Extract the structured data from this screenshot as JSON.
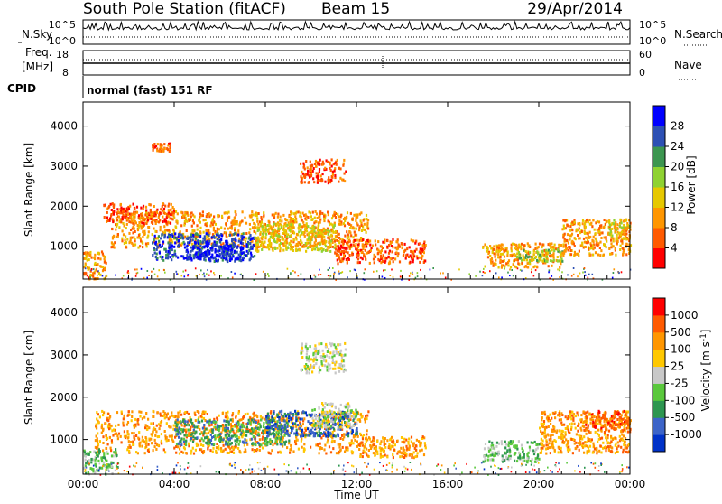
{
  "header": {
    "station": "South Pole Station (fitACF)",
    "beam": "Beam 15",
    "date": "29/Apr/2014"
  },
  "aux_panels": {
    "nsky_label": "N.Sky",
    "nsky_ticks": [
      "10^5",
      "10^0"
    ],
    "nsearch_label": "N.Search",
    "nsearch_ticks": [
      "10^5",
      "10^0"
    ],
    "freq_label_top": "Freq.",
    "freq_label_bottom": "[MHz]",
    "freq_ticks": [
      "18",
      "8"
    ],
    "nave_label": "Nave",
    "nave_ticks": [
      "60",
      "0"
    ],
    "cpid_label": "CPID",
    "cpid_text": "normal (fast) 151 RF"
  },
  "chart_data": [
    {
      "type": "heatmap",
      "name": "power",
      "ylabel": "Slant Range [km]",
      "yticks": [
        "4000",
        "3000",
        "2000",
        "1000"
      ],
      "yticks_values": [
        4000,
        3000,
        2000,
        1000
      ],
      "ylim": [
        180,
        4600
      ],
      "xlim_hours": [
        0,
        24
      ],
      "colorbar": {
        "label": "Power [dB]",
        "ticks": [
          "28",
          "24",
          "20",
          "16",
          "12",
          "8",
          "4"
        ],
        "colors": [
          "#ff0000",
          "#ff5a00",
          "#ff9600",
          "#e6c800",
          "#8fd232",
          "#3c9650",
          "#2d50b4",
          "#0000ff"
        ]
      },
      "regions": [
        {
          "t0": 1.2,
          "t1": 12.5,
          "r0": 1000,
          "r1": 1900,
          "level": 2
        },
        {
          "t0": 3.0,
          "t1": 7.5,
          "r0": 650,
          "r1": 1350,
          "level": 6
        },
        {
          "t0": 4.5,
          "t1": 7.0,
          "r0": 700,
          "r1": 1200,
          "level": 7
        },
        {
          "t0": 7.5,
          "t1": 11.0,
          "r0": 900,
          "r1": 1600,
          "level": 3
        },
        {
          "t0": 11.0,
          "t1": 15.0,
          "r0": 600,
          "r1": 1200,
          "level": 1
        },
        {
          "t0": 0.0,
          "t1": 1.0,
          "r0": 200,
          "r1": 900,
          "level": 2
        },
        {
          "t0": 0.8,
          "t1": 4.0,
          "r0": 1600,
          "r1": 2100,
          "level": 1
        },
        {
          "t0": 9.5,
          "t1": 11.5,
          "r0": 2600,
          "r1": 3200,
          "level": 1
        },
        {
          "t0": 3.0,
          "t1": 3.8,
          "r0": 3400,
          "r1": 3600,
          "level": 1
        },
        {
          "t0": 17.5,
          "t1": 21.0,
          "r0": 500,
          "r1": 1100,
          "level": 2
        },
        {
          "t0": 19.0,
          "t1": 21.0,
          "r0": 650,
          "r1": 950,
          "level": 4
        },
        {
          "t0": 21.0,
          "t1": 24.0,
          "r0": 800,
          "r1": 1700,
          "level": 2
        },
        {
          "t0": 23.0,
          "t1": 24.0,
          "r0": 1200,
          "r1": 1700,
          "level": 3
        }
      ]
    },
    {
      "type": "heatmap",
      "name": "velocity",
      "ylabel": "Slant Range [km]",
      "yticks": [
        "4000",
        "3000",
        "2000",
        "1000"
      ],
      "yticks_values": [
        4000,
        3000,
        2000,
        1000
      ],
      "ylim": [
        180,
        4600
      ],
      "xlim_hours": [
        0,
        24
      ],
      "xticks": [
        "00:00",
        "04:00",
        "08:00",
        "12:00",
        "16:00",
        "20:00",
        "00:00"
      ],
      "xticks_hours": [
        0,
        4,
        8,
        12,
        16,
        20,
        24
      ],
      "xlabel": "Time UT",
      "colorbar": {
        "label": "Velocity [m s",
        "label_sup": "-1",
        "label_end": "]",
        "ticks": [
          "1000",
          "500",
          "100",
          "25",
          "-25",
          "-100",
          "-500",
          "-1000"
        ],
        "colors": [
          "#0032c8",
          "#3c64c8",
          "#2d9650",
          "#5ac83c",
          "#c8c8c8",
          "#ffc800",
          "#ff9600",
          "#ff5a00",
          "#ff0000"
        ]
      },
      "regions": [
        {
          "t0": 0.5,
          "t1": 12.5,
          "r0": 700,
          "r1": 1700,
          "level": 6
        },
        {
          "t0": 4.0,
          "t1": 9.0,
          "r0": 900,
          "r1": 1500,
          "level": 2
        },
        {
          "t0": 8.0,
          "t1": 12.0,
          "r0": 1100,
          "r1": 1700,
          "level": 1
        },
        {
          "t0": 10.0,
          "t1": 12.0,
          "r0": 1300,
          "r1": 1900,
          "level": 4
        },
        {
          "t0": 0.0,
          "t1": 1.5,
          "r0": 200,
          "r1": 800,
          "level": 3
        },
        {
          "t0": 12.0,
          "t1": 15.0,
          "r0": 600,
          "r1": 1100,
          "level": 6
        },
        {
          "t0": 9.5,
          "t1": 11.5,
          "r0": 2600,
          "r1": 3300,
          "level": 4
        },
        {
          "t0": 17.5,
          "t1": 20.0,
          "r0": 500,
          "r1": 1000,
          "level": 3
        },
        {
          "t0": 20.0,
          "t1": 24.0,
          "r0": 700,
          "r1": 1700,
          "level": 6
        },
        {
          "t0": 22.0,
          "t1": 24.0,
          "r0": 1200,
          "r1": 1700,
          "level": 7
        }
      ]
    }
  ]
}
